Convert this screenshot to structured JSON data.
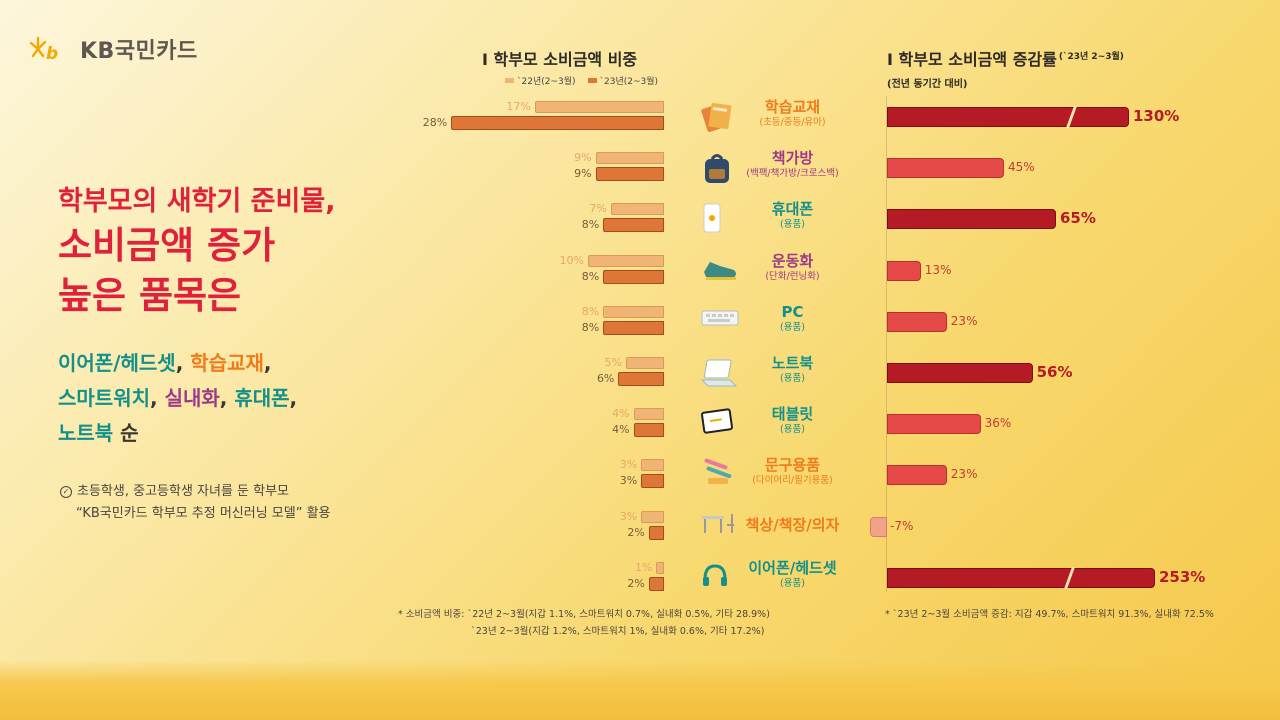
{
  "brand": {
    "name": "KB국민카드"
  },
  "headline": {
    "line1": "학부모의 새학기 준비물,",
    "line2": "소비금액 증가",
    "line3": "높은 품목은"
  },
  "highlight_items": {
    "earphone": "이어폰/헤드셋",
    "sep1": ", ",
    "textbook": "학습교재",
    "sep2": ",",
    "smartwatch": "스마트워치",
    "sep3": ", ",
    "shoes": "실내화",
    "sep4": ", ",
    "phone": "휴대폰",
    "sep5": ",",
    "notebook": "노트북",
    "order": " 순"
  },
  "note_left": {
    "line1": "초등학생, 중고등학생 자녀를 둔 학부모",
    "line2": "“KB국민카드 학부모 추정 머신러닝 모델” 활용"
  },
  "colors": {
    "prev": "#f0b574",
    "cur": "#dd7636",
    "growth_strong": "#b51b24",
    "growth_mid": "#e64a48",
    "growth_neg": "#f1a38a",
    "headline": "#e0213b"
  },
  "chart_data": [
    {
      "type": "bar",
      "title": "I 학부모 소비금액 비중",
      "categories": [
        "학습교재",
        "책가방",
        "휴대폰",
        "운동화",
        "PC",
        "노트북",
        "태블릿",
        "문구용품",
        "책상/책장/의자",
        "이어폰/헤드셋"
      ],
      "series": [
        {
          "name": "`22년(2~3월)",
          "values": [
            17,
            9,
            7,
            10,
            8,
            5,
            4,
            3,
            3,
            1
          ],
          "labels": [
            "17%",
            "9%",
            "7%",
            "10%",
            "8%",
            "5%",
            "4%",
            "3%",
            "3%",
            "1%"
          ]
        },
        {
          "name": "`23년(2~3월)",
          "values": [
            28,
            9,
            8,
            8,
            8,
            6,
            4,
            3,
            2,
            2
          ],
          "labels": [
            "28%",
            "9%",
            "8%",
            "8%",
            "8%",
            "6%",
            "4%",
            "3%",
            "2%",
            "2%"
          ]
        }
      ],
      "footnote_line1": "* 소비금액 비중: `22년 2~3월(지갑 1.1%, 스마트워치 0.7%, 실내화 0.5%, 기타 28.9%)",
      "footnote_line2": "`23년 2~3월(지갑 1.2%, 스마트워치 1%, 실내화 0.6%, 기타 17.2%)"
    },
    {
      "type": "bar",
      "title": "I 학부모 소비금액 증감률",
      "title_suffix": "(`23년 2~3월)",
      "subtitle": "(전년 동기간 대비)",
      "categories": [
        "학습교재",
        "책가방",
        "휴대폰",
        "운동화",
        "PC",
        "노트북",
        "태블릿",
        "문구용품",
        "책상/책장/의자",
        "이어폰/헤드셋"
      ],
      "values": [
        130,
        45,
        65,
        13,
        23,
        56,
        36,
        23,
        -7,
        253
      ],
      "labels": [
        "130%",
        "45%",
        "65%",
        "13%",
        "23%",
        "56%",
        "36%",
        "23%",
        "-7%",
        "253%"
      ],
      "footnote": "* `23년 2~3월 소비금액 증감: 지갑 49.7%, 스마트워치 91.3%, 실내화 72.5%"
    }
  ],
  "category_labels": [
    {
      "name": "학습교재",
      "sub": "(초등/중등/유아)",
      "color": "#f07b1a",
      "icon": "books-icon"
    },
    {
      "name": "책가방",
      "sub": "(백팩/책가방/크로스백)",
      "color": "#9e3a86",
      "icon": "backpack-icon"
    },
    {
      "name": "휴대폰",
      "sub": "(용품)",
      "color": "#14908a",
      "icon": "phone-icon"
    },
    {
      "name": "운동화",
      "sub": "(단화/런닝화)",
      "color": "#9e3a86",
      "icon": "sneaker-icon"
    },
    {
      "name": "PC",
      "sub": "(용품)",
      "color": "#14908a",
      "icon": "keyboard-icon"
    },
    {
      "name": "노트북",
      "sub": "(용품)",
      "color": "#14908a",
      "icon": "laptop-icon"
    },
    {
      "name": "태블릿",
      "sub": "(용품)",
      "color": "#14908a",
      "icon": "tablet-icon"
    },
    {
      "name": "문구용품",
      "sub": "(다이어리/필기용품)",
      "color": "#f07b1a",
      "icon": "stationery-icon"
    },
    {
      "name": "책상/책장/의자",
      "sub": "",
      "color": "#f07b1a",
      "icon": "desk-icon"
    },
    {
      "name": "이어폰/헤드셋",
      "sub": "(용품)",
      "color": "#14908a",
      "icon": "headset-icon"
    }
  ]
}
